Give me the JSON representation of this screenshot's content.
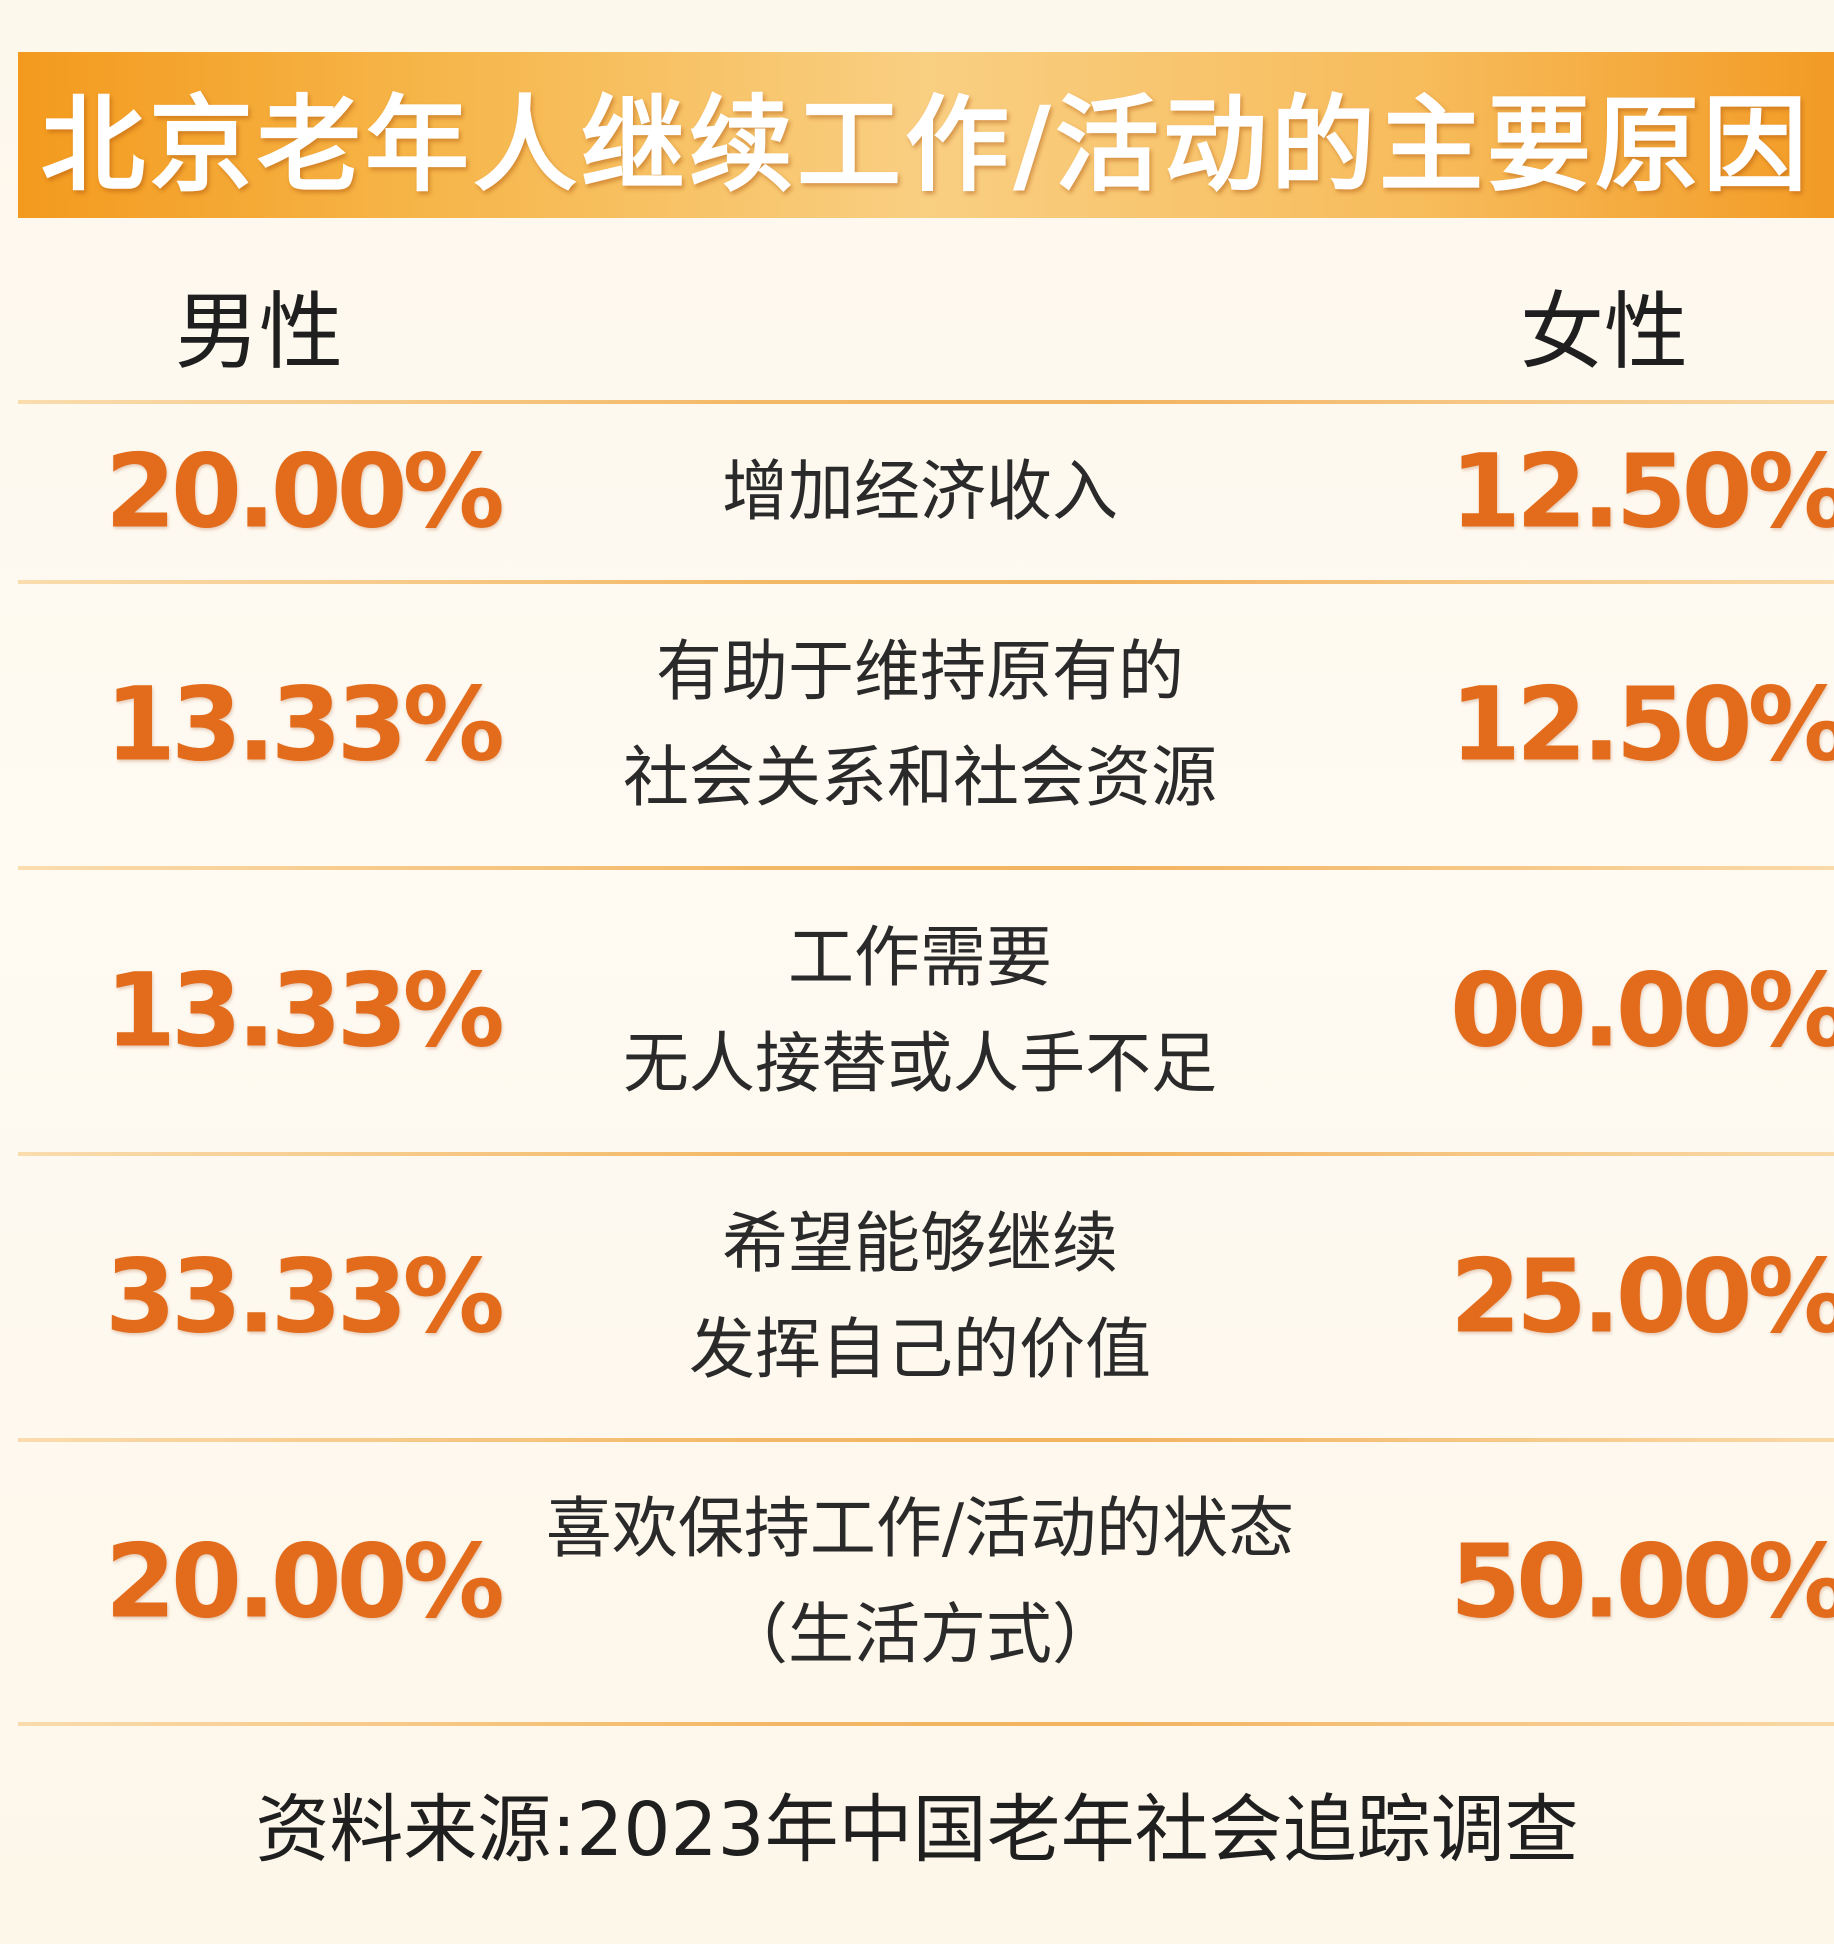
{
  "title": "北京老年人继续工作/活动的主要原因",
  "headers": {
    "male": "男性",
    "female": "女性"
  },
  "rows": [
    {
      "male": "20.00%",
      "female": "12.50%",
      "reason_lines": [
        "增加经济收入"
      ]
    },
    {
      "male": "13.33%",
      "female": "12.50%",
      "reason_lines": [
        "有助于维持原有的",
        "社会关系和社会资源"
      ]
    },
    {
      "male": "13.33%",
      "female": "00.00%",
      "reason_lines": [
        "工作需要",
        "无人接替或人手不足"
      ]
    },
    {
      "male": "33.33%",
      "female": "25.00%",
      "reason_lines": [
        "希望能够继续",
        "发挥自己的价值"
      ]
    },
    {
      "male": "20.00%",
      "female": "50.00%",
      "reason_lines": [
        "喜欢保持工作/活动的状态",
        "（生活方式）"
      ]
    }
  ],
  "source": "资料来源:2023年中国老年社会追踪调查",
  "colors": {
    "banner": "#f6b548",
    "percent": "#e26c1c",
    "text": "#2a2a2a"
  }
}
